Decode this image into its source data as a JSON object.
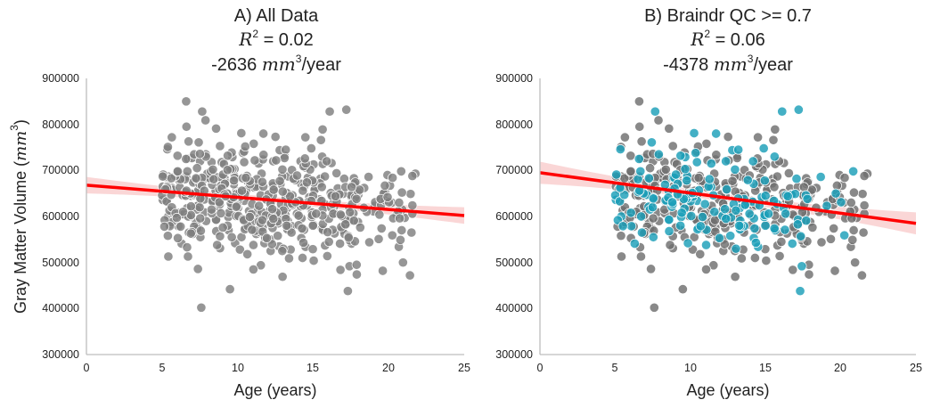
{
  "colors": {
    "all_points": "#7f7f7f",
    "qc_pass_points": "#1b9fb8",
    "qc_fail_points": "#6f6f6f",
    "fit_line": "#ff0000",
    "ci_band": "#f4a3a3",
    "axis": "#bdbdbd"
  },
  "chart_data": [
    {
      "type": "scatter",
      "title_lines": [
        "A) All Data",
        "R² = 0.02",
        "-2636 mm³/year"
      ],
      "xlabel": "Age (years)",
      "ylabel": "Gray Matter Volume (mm³)",
      "xlim": [
        0,
        25
      ],
      "ylim": [
        300000,
        900000
      ],
      "xticks": [
        "0",
        "5",
        "10",
        "15",
        "20",
        "25"
      ],
      "yticks": [
        "300000",
        "400000",
        "500000",
        "600000",
        "700000",
        "800000",
        "900000"
      ],
      "grid": false,
      "highlight_threshold": null,
      "fit": {
        "y_at_x0": 668000,
        "y_at_x25": 602000,
        "ci_halfwidth_ends": 18000,
        "ci_halfwidth_mid": 7000
      },
      "points": []
    },
    {
      "type": "scatter",
      "title_lines": [
        "B) Braindr QC >= 0.7",
        "R² = 0.06",
        "-4378 mm³/year"
      ],
      "xlabel": "Age (years)",
      "ylabel": "",
      "xlim": [
        0,
        25
      ],
      "ylim": [
        300000,
        900000
      ],
      "xticks": [
        "0",
        "5",
        "10",
        "15",
        "20",
        "25"
      ],
      "yticks": [
        "300000",
        "400000",
        "500000",
        "600000",
        "700000",
        "800000",
        "900000"
      ],
      "grid": false,
      "highlight_threshold": 0.7,
      "fit": {
        "y_at_x0": 695000,
        "y_at_x25": 585000,
        "ci_halfwidth_ends": 24000,
        "ci_halfwidth_mid": 8000
      },
      "points": []
    }
  ]
}
